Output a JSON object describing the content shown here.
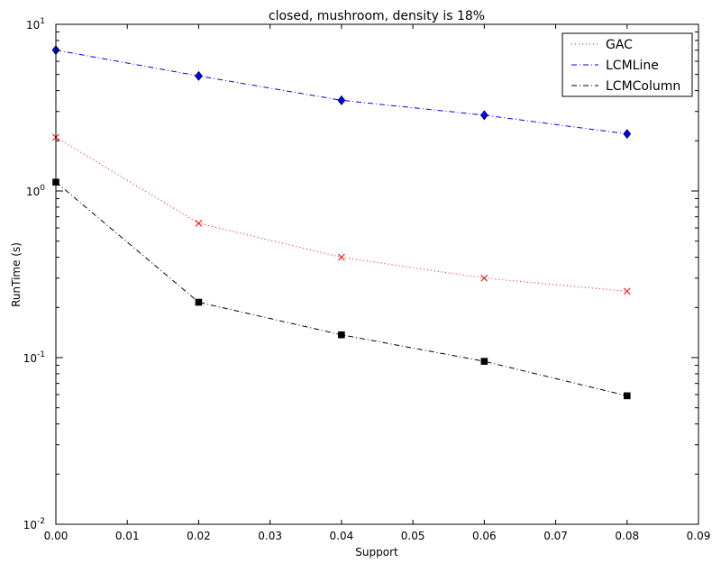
{
  "chart_data": {
    "type": "line",
    "title": "closed, mushroom, density is 18%",
    "xlabel": "Support",
    "ylabel": "RunTime (s)",
    "xlim": [
      0.0,
      0.09
    ],
    "ylim": [
      0.01,
      10
    ],
    "yscale": "log",
    "x_ticks": [
      "0.00",
      "0.01",
      "0.02",
      "0.03",
      "0.04",
      "0.05",
      "0.06",
      "0.07",
      "0.08",
      "0.09"
    ],
    "y_ticks": [
      {
        "base": "10",
        "exp": "-2"
      },
      {
        "base": "10",
        "exp": "-1"
      },
      {
        "base": "10",
        "exp": "0"
      },
      {
        "base": "10",
        "exp": "1"
      }
    ],
    "grid": false,
    "legend_position": "top-right",
    "x": [
      0.0,
      0.02,
      0.04,
      0.06,
      0.08
    ],
    "series": [
      {
        "name": "GAC",
        "color": "#ff0000",
        "linestyle": "dotted",
        "marker": "x",
        "values": [
          2.1,
          0.64,
          0.4,
          0.3,
          0.25
        ]
      },
      {
        "name": "LCMLine",
        "color": "#0000ff",
        "linestyle": "dashdot",
        "marker": "diamond",
        "values": [
          7.0,
          4.9,
          3.5,
          2.85,
          2.2
        ]
      },
      {
        "name": "LCMColumn",
        "color": "#000000",
        "linestyle": "dashdot",
        "marker": "square",
        "values": [
          1.13,
          0.215,
          0.137,
          0.095,
          0.059
        ]
      }
    ]
  }
}
